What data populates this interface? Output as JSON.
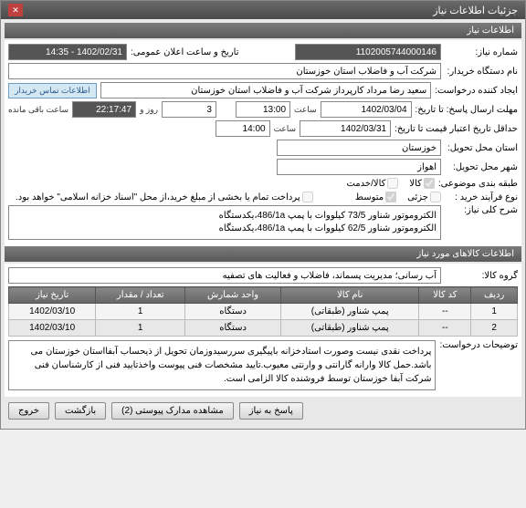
{
  "window": {
    "title": "جزئیات اطلاعات نیاز"
  },
  "section1": {
    "header": "اطلاعات نیاز",
    "need_no_label": "شماره نیاز:",
    "need_no": "1102005744000146",
    "announce_label": "تاریخ و ساعت اعلان عمومی:",
    "announce_value": "1402/02/31 - 14:35",
    "buyer_label": "نام دستگاه خریدار:",
    "buyer_value": "شرکت آب و فاضلاب استان خوزستان",
    "creator_label": "ایجاد کننده درخواست:",
    "creator_value": "سعید رضا مرداد کارپرداز شرکت آب و فاضلاب استان خوزستان",
    "contact_btn": "اطلاعات تماس خریدار",
    "deadline_label": "مهلت ارسال پاسخ: تا تاریخ:",
    "deadline_date": "1402/03/04",
    "deadline_time_label": "ساعت",
    "deadline_time": "13:00",
    "days_label": "روز و",
    "days_value": "3",
    "remain_label": "ساعت باقی مانده",
    "remain_value": "22:17:47",
    "valid_label": "حداقل تاریخ اعتبار قیمت تا تاریخ:",
    "valid_date": "1402/03/31",
    "valid_time_label": "ساعت",
    "valid_time": "14:00",
    "province_label": "استان محل تحویل:",
    "province_value": "خوزستان",
    "city_label": "شهر محل تحویل:",
    "city_value": "اهواز",
    "class_label": "طبقه بندی موضوعی:",
    "class_opts": {
      "kala": "کالا",
      "khadamat": "کالا/خدمت"
    },
    "process_label": "نوع فرآیند خرید :",
    "process_opts": {
      "joze": "جزئی",
      "motavaset": "متوسط"
    },
    "pay_note": "پرداخت تمام یا بخشی از مبلغ خرید،از محل \"اسناد خزانه اسلامی\" خواهد بود.",
    "desc_label": "شرح کلی نیاز:",
    "desc_value": "الکتروموتور شناور 73/5 کیلووات با پمپ 486/1a،یکدستگاه\nالکتروموتور شناور 62/5 کیلووات با پمپ 486/1a،یکدستگاه"
  },
  "section2": {
    "header": "اطلاعات کالاهای مورد نیاز",
    "group_label": "گروه کالا:",
    "group_value": "آب رسانی؛ مدیریت پسماند، فاضلاب و فعالیت های تصفیه",
    "columns": [
      "ردیف",
      "کد کالا",
      "نام کالا",
      "واحد شمارش",
      "تعداد / مقدار",
      "تاریخ نیاز"
    ],
    "rows": [
      [
        "1",
        "--",
        "پمپ شناور (طبقاتی)",
        "دستگاه",
        "1",
        "1402/03/10"
      ],
      [
        "2",
        "--",
        "پمپ شناور (طبقاتی)",
        "دستگاه",
        "1",
        "1402/03/10"
      ]
    ],
    "notes_label": "توضیحات درخواست:",
    "notes_value": "پرداخت نقدی نیست وصورت استادخزانه باپیگیری سررسیدوزمان تحویل از ذیحساب آبفااستان خوزستان می باشد.حمل کالا وارانه گارانتی و وارنتی معیوب.تایید مشخصات فنی پیوست واخذتایید فنی از کارشناسان فنی شرکت آبفا خوزستان توسط فروشنده کالا الزامی است."
  },
  "footer": {
    "back": "پاسخ به نیاز",
    "attach": "مشاهده مدارک پیوستی (2)",
    "exit": "بازگشت",
    "close": "خروج"
  }
}
